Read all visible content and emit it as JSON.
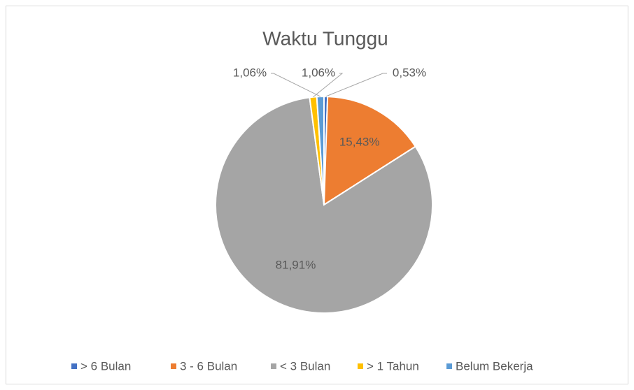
{
  "chart_data": {
    "type": "pie",
    "title": "Waktu Tunggu",
    "categories": [
      "> 6 Bulan",
      "3 - 6 Bulan",
      "< 3 Bulan",
      "> 1 Tahun",
      "Belum Bekerja"
    ],
    "values": [
      0.53,
      15.43,
      81.91,
      1.06,
      1.06
    ],
    "value_labels": [
      "0,53%",
      "15,43%",
      "81,91%",
      "1,06%",
      "1,06%"
    ],
    "colors": [
      "#4472c4",
      "#ed7d31",
      "#a5a5a5",
      "#ffc000",
      "#5b9bd5"
    ],
    "legend": "bottom"
  }
}
